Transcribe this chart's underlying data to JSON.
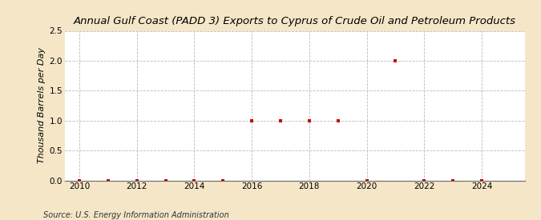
{
  "title": "Annual Gulf Coast (PADD 3) Exports to Cyprus of Crude Oil and Petroleum Products",
  "ylabel": "Thousand Barrels per Day",
  "source": "Source: U.S. Energy Information Administration",
  "background_color": "#f5e6c8",
  "plot_background_color": "#ffffff",
  "xlim": [
    2009.5,
    2025.5
  ],
  "ylim": [
    0.0,
    2.5
  ],
  "yticks": [
    0.0,
    0.5,
    1.0,
    1.5,
    2.0,
    2.5
  ],
  "xticks": [
    2010,
    2012,
    2014,
    2016,
    2018,
    2020,
    2022,
    2024
  ],
  "years": [
    2010,
    2011,
    2012,
    2013,
    2014,
    2015,
    2016,
    2017,
    2018,
    2019,
    2020,
    2021,
    2022,
    2023,
    2024
  ],
  "values": [
    0.0,
    0.0,
    0.0,
    0.0,
    0.0,
    0.0,
    1.0,
    1.0,
    1.0,
    1.0,
    0.0,
    2.0,
    0.0,
    0.0,
    0.0
  ],
  "marker_color": "#cc0000",
  "marker_size": 3,
  "grid_color": "#bbbbbb",
  "grid_style": "--",
  "title_fontsize": 9.5,
  "label_fontsize": 8,
  "tick_fontsize": 7.5,
  "source_fontsize": 7
}
